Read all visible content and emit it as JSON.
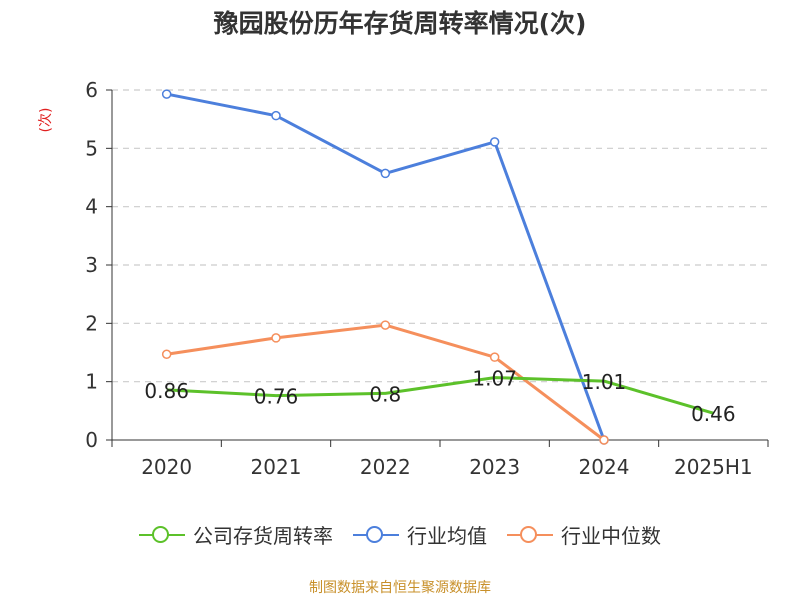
{
  "chart_data": {
    "type": "line",
    "title": "豫园股份历年存货周转率情况(次)",
    "ylabel": "(次)",
    "xlabel": "",
    "categories": [
      "2020",
      "2021",
      "2022",
      "2023",
      "2024",
      "2025H1"
    ],
    "ylim": [
      0,
      6
    ],
    "yticks": [
      0,
      1,
      2,
      3,
      4,
      5,
      6
    ],
    "grid": true,
    "legend_position": "bottom",
    "series": [
      {
        "name": "公司存货周转率",
        "color": "#5cc12a",
        "values": [
          0.86,
          0.76,
          0.8,
          1.07,
          1.01,
          0.46
        ],
        "labels": [
          "0.86",
          "0.76",
          "0.8",
          "1.07",
          "1.01",
          "0.46"
        ],
        "show_points": false,
        "show_labels": true
      },
      {
        "name": "行业均值",
        "color": "#4c7fdc",
        "values": [
          5.93,
          5.56,
          4.57,
          5.11,
          0,
          null
        ],
        "show_points": true,
        "show_labels": false
      },
      {
        "name": "行业中位数",
        "color": "#f58f5c",
        "values": [
          1.47,
          1.75,
          1.97,
          1.42,
          0,
          null
        ],
        "show_points": true,
        "show_labels": false
      }
    ]
  },
  "legend": {
    "items": [
      "公司存货周转率",
      "行业均值",
      "行业中位数"
    ]
  },
  "source": "制图数据来自恒生聚源数据库"
}
